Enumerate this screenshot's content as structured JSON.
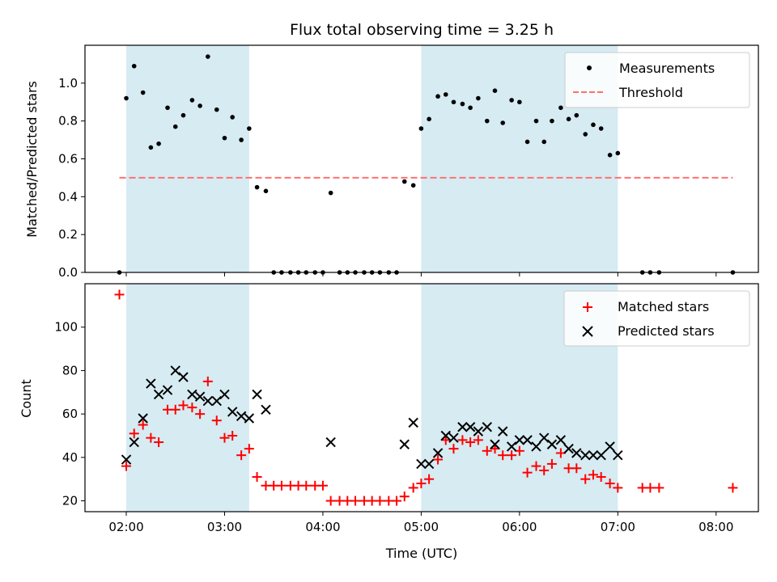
{
  "chart_data": {
    "type": "scatter",
    "title": "Flux total observing time = 3.25 h",
    "xlabel": "Time (UTC)",
    "x_unit": "hours (UTC, decimal)",
    "xlim": [
      1.58,
      8.43
    ],
    "x_ticks": [
      {
        "value": 2,
        "label": "02:00"
      },
      {
        "value": 3,
        "label": "03:00"
      },
      {
        "value": 4,
        "label": "04:00"
      },
      {
        "value": 5,
        "label": "05:00"
      },
      {
        "value": 6,
        "label": "06:00"
      },
      {
        "value": 7,
        "label": "07:00"
      },
      {
        "value": 8,
        "label": "08:00"
      }
    ],
    "shaded_intervals": [
      [
        2.0,
        3.25
      ],
      [
        5.0,
        7.0
      ]
    ],
    "top_panel": {
      "ylabel": "Matched/Predicted stars",
      "ylim": [
        0,
        1.2
      ],
      "y_ticks": [
        "0.0",
        "0.2",
        "0.4",
        "0.6",
        "0.8",
        "1.0"
      ],
      "threshold": {
        "name": "Threshold",
        "value": 0.5,
        "x_range": [
          1.93,
          8.17
        ],
        "color": "#ff7070"
      },
      "legend": [
        {
          "label": "Measurements",
          "marker": "dot"
        },
        {
          "label": "Threshold",
          "marker": "dashed-line"
        }
      ],
      "measurements": {
        "name": "Measurements",
        "color": "#000000",
        "x": [
          1.93,
          2.0,
          2.08,
          2.17,
          2.25,
          2.33,
          2.42,
          2.5,
          2.58,
          2.67,
          2.75,
          2.83,
          2.92,
          3.0,
          3.08,
          3.17,
          3.25,
          3.33,
          3.42,
          3.5,
          3.58,
          3.67,
          3.75,
          3.83,
          3.92,
          4.0,
          4.08,
          4.17,
          4.25,
          4.33,
          4.42,
          4.5,
          4.58,
          4.67,
          4.75,
          4.83,
          4.92,
          5.0,
          5.08,
          5.17,
          5.25,
          5.33,
          5.42,
          5.5,
          5.58,
          5.67,
          5.75,
          5.83,
          5.92,
          6.0,
          6.08,
          6.17,
          6.25,
          6.33,
          6.42,
          6.5,
          6.58,
          6.67,
          6.75,
          6.83,
          6.92,
          7.0,
          7.25,
          7.33,
          7.42,
          8.17
        ],
        "y": [
          0.0,
          0.92,
          1.09,
          0.95,
          0.66,
          0.68,
          0.87,
          0.77,
          0.83,
          0.91,
          0.88,
          1.14,
          0.86,
          0.71,
          0.82,
          0.7,
          0.76,
          0.45,
          0.43,
          0.0,
          0.0,
          0.0,
          0.0,
          0.0,
          0.0,
          0.0,
          0.42,
          0.0,
          0.0,
          0.0,
          0.0,
          0.0,
          0.0,
          0.0,
          0.0,
          0.48,
          0.46,
          0.76,
          0.81,
          0.93,
          0.94,
          0.9,
          0.89,
          0.87,
          0.92,
          0.8,
          0.96,
          0.79,
          0.91,
          0.9,
          0.69,
          0.8,
          0.69,
          0.8,
          0.87,
          0.81,
          0.83,
          0.73,
          0.78,
          0.76,
          0.62,
          0.63,
          0.0,
          0.0,
          0.0,
          0.0
        ]
      }
    },
    "bottom_panel": {
      "ylabel": "Count",
      "ylim": [
        15,
        120
      ],
      "y_ticks": [
        "20",
        "40",
        "60",
        "80",
        "100"
      ],
      "legend": [
        {
          "label": "Matched stars",
          "marker": "plus",
          "color": "#ff0000"
        },
        {
          "label": "Predicted stars",
          "marker": "x",
          "color": "#000000"
        }
      ],
      "series": [
        {
          "name": "Matched stars",
          "marker": "plus",
          "color": "#ff0000",
          "x": [
            1.93,
            2.0,
            2.08,
            2.17,
            2.25,
            2.33,
            2.42,
            2.5,
            2.58,
            2.67,
            2.75,
            2.83,
            2.92,
            3.0,
            3.08,
            3.17,
            3.25,
            3.33,
            3.42,
            3.5,
            3.58,
            3.67,
            3.75,
            3.83,
            3.92,
            4.0,
            4.08,
            4.17,
            4.25,
            4.33,
            4.42,
            4.5,
            4.58,
            4.67,
            4.75,
            4.83,
            4.92,
            5.0,
            5.08,
            5.17,
            5.25,
            5.33,
            5.42,
            5.5,
            5.58,
            5.67,
            5.75,
            5.83,
            5.92,
            6.0,
            6.08,
            6.17,
            6.25,
            6.33,
            6.42,
            6.5,
            6.58,
            6.67,
            6.75,
            6.83,
            6.92,
            7.0,
            7.25,
            7.33,
            7.42,
            8.17
          ],
          "y": [
            115,
            36,
            51,
            55,
            49,
            47,
            62,
            62,
            64,
            63,
            60,
            75,
            57,
            49,
            50,
            41,
            44,
            31,
            27,
            27,
            27,
            27,
            27,
            27,
            27,
            27,
            20,
            20,
            20,
            20,
            20,
            20,
            20,
            20,
            20,
            22,
            26,
            28,
            30,
            39,
            48,
            44,
            48,
            47,
            48,
            43,
            44,
            41,
            41,
            43,
            33,
            36,
            34,
            37,
            42,
            35,
            35,
            30,
            32,
            31,
            28,
            26,
            26,
            26,
            26,
            26
          ]
        },
        {
          "name": "Predicted stars",
          "marker": "x",
          "color": "#000000",
          "x": [
            2.0,
            2.08,
            2.17,
            2.25,
            2.33,
            2.42,
            2.5,
            2.58,
            2.67,
            2.75,
            2.83,
            2.92,
            3.0,
            3.08,
            3.17,
            3.25,
            3.33,
            3.42,
            4.08,
            4.83,
            4.92,
            5.0,
            5.08,
            5.17,
            5.25,
            5.33,
            5.42,
            5.5,
            5.58,
            5.67,
            5.75,
            5.83,
            5.92,
            6.0,
            6.08,
            6.17,
            6.25,
            6.33,
            6.42,
            6.5,
            6.58,
            6.67,
            6.75,
            6.83,
            6.92,
            7.0
          ],
          "y": [
            39,
            47,
            58,
            74,
            69,
            71,
            80,
            77,
            69,
            68,
            66,
            66,
            69,
            61,
            59,
            58,
            69,
            62,
            47,
            46,
            56,
            37,
            37,
            42,
            50,
            49,
            54,
            54,
            52,
            54,
            46,
            52,
            45,
            48,
            48,
            45,
            49,
            46,
            48,
            44,
            42,
            41,
            41,
            41,
            45,
            41
          ]
        }
      ]
    }
  }
}
